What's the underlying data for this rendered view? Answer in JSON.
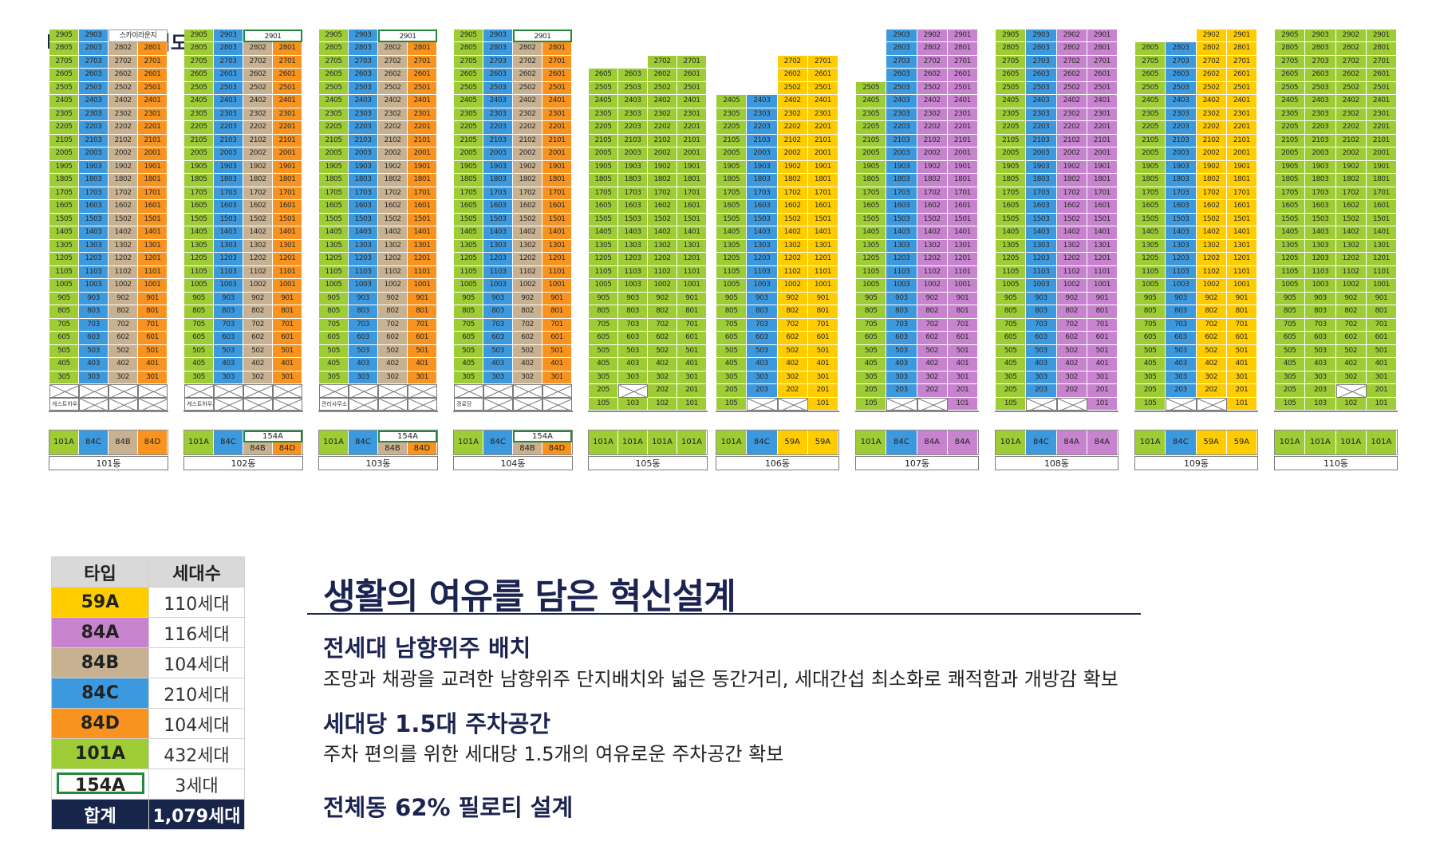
{
  "heading": "동·호수 배치도",
  "colors": {
    "59A": "#ffcc00",
    "84A": "#c883cf",
    "84B": "#c8b191",
    "84C": "#3d99dd",
    "84D": "#f7931e",
    "101A": "#9dcc35",
    "154A": "#ffffff",
    "154A_border": "#1f8a3a",
    "total_bg": "#17254a"
  },
  "buildings": [
    {
      "name": "101동",
      "topFloor": 29,
      "bottomFloor": 3,
      "topStart": 29,
      "cols": [
        "05",
        "03",
        "02",
        "01"
      ],
      "types": [
        "101A",
        "84C",
        "84B",
        "84D"
      ],
      "override": {
        "29": [
          "2905",
          "2903",
          "스카이라운지",
          ""
        ]
      },
      "pilotiFloors": [],
      "facility": "게스트하우스",
      "typeRow": [
        "101A",
        "84C",
        "84B",
        "84D"
      ],
      "sky": true
    },
    {
      "name": "102동",
      "topFloor": 29,
      "bottomFloor": 3,
      "topStart": 29,
      "cols": [
        "05",
        "03",
        "02",
        "01"
      ],
      "types": [
        "101A",
        "84C",
        "84B",
        "84D"
      ],
      "override": {
        "29": [
          "2905",
          "2903",
          "2901",
          ""
        ]
      },
      "pilotiFloors": [],
      "facility": "게스트하우스",
      "typeRow": [
        "101A",
        "84C",
        "154A|84B",
        "154A|84D"
      ]
    },
    {
      "name": "103동",
      "topFloor": 29,
      "bottomFloor": 3,
      "topStart": 29,
      "cols": [
        "05",
        "03",
        "02",
        "01"
      ],
      "types": [
        "101A",
        "84C",
        "84B",
        "84D"
      ],
      "override": {
        "29": [
          "2905",
          "2903",
          "2901",
          ""
        ]
      },
      "pilotiFloors": [],
      "facility": "관리사무소",
      "typeRow": [
        "101A",
        "84C",
        "154A|84B",
        "154A|84D"
      ]
    },
    {
      "name": "104동",
      "topFloor": 29,
      "bottomFloor": 3,
      "topStart": 29,
      "cols": [
        "05",
        "03",
        "02",
        "01"
      ],
      "types": [
        "101A",
        "84C",
        "84B",
        "84D"
      ],
      "override": {
        "29": [
          "2905",
          "2903",
          "2901",
          ""
        ]
      },
      "pilotiFloors": [],
      "facility": "경로당",
      "typeRow": [
        "101A",
        "84C",
        "154A|84B",
        "154A|84D"
      ]
    }
  ],
  "building_labels": [
    "101동",
    "102동",
    "103동",
    "104동",
    "105동",
    "106동",
    "107동",
    "108동",
    "109동",
    "110동"
  ],
  "legend": {
    "header": [
      "타입",
      "세대수"
    ],
    "rows": [
      {
        "type": "59A",
        "count": "110세대"
      },
      {
        "type": "84A",
        "count": "116세대"
      },
      {
        "type": "84B",
        "count": "104세대"
      },
      {
        "type": "84C",
        "count": "210세대"
      },
      {
        "type": "84D",
        "count": "104세대"
      },
      {
        "type": "101A",
        "count": "432세대"
      },
      {
        "type": "154A",
        "count": "3세대"
      }
    ],
    "total": {
      "label": "합계",
      "count": "1,079세대"
    }
  },
  "main_title": "생활의 여유를 담은 혁신설계",
  "features": [
    {
      "title": "전세대 남향위주 배치",
      "desc": "조망과 채광을 교려한 남향위주 단지배치와 넓은 동간거리, 세대간섭 최소화로 쾌적함과 개방감 확보"
    },
    {
      "title": "세대당 1.5대 주차공간",
      "desc": "주차 편의를 위한 세대당 1.5개의 여유로운 주차공간 확보"
    },
    {
      "title": "전체동 62% 필로티 설계",
      "desc": ""
    }
  ],
  "facilities": [
    "게스트하우스",
    "게스트하우스",
    "관리사무소",
    "경로당"
  ],
  "skylounge": "스카이라운지",
  "type_labels": {
    "t101A": "101A",
    "t84C": "84C",
    "t84B": "84B",
    "t84D": "84D",
    "t154A": "154A",
    "t59A": "59A",
    "t84A": "84A"
  }
}
